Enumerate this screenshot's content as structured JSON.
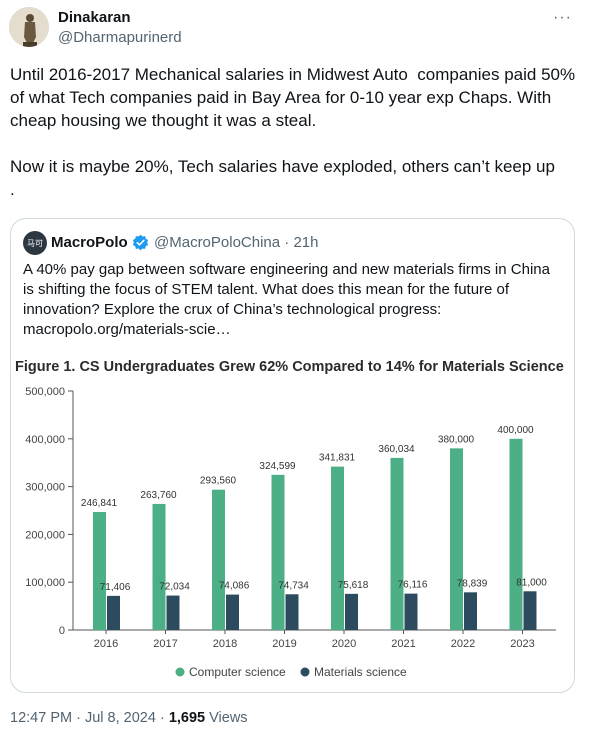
{
  "tweet": {
    "author_name": "Dinakaran",
    "author_handle": "@Dharmapurinerd",
    "more_icon": "more-icon",
    "text": "Until 2016-2017 Mechanical salaries in Midwest Auto  companies paid 50% of what Tech companies paid in Bay Area for 0-10 year exp Chaps. With cheap housing we thought it was a steal.\n\nNow it is maybe 20%, Tech salaries have exploded, others can’t keep up\n.",
    "time": "12:47 PM",
    "date": "Jul 8, 2024",
    "views_count": "1,695",
    "views_label": "Views"
  },
  "quote": {
    "author_name": "MacroPolo",
    "author_handle": "@MacroPoloChina",
    "age": "21h",
    "avatar_text": "马可",
    "text": "A 40% pay gap between software engineering and new materials firms in China is shifting the focus of STEM talent. What does this mean for the future of innovation? Explore the crux of China’s technological progress: macropolo.org/materials-scie…"
  },
  "chart_data": {
    "type": "bar",
    "title": "Figure 1. CS Undergraduates Grew 62% Compared to 14% for Materials Science",
    "categories": [
      "2016",
      "2017",
      "2018",
      "2019",
      "2020",
      "2021",
      "2022",
      "2023"
    ],
    "series": [
      {
        "name": "Computer science",
        "color": "#4daf85",
        "values": [
          246841,
          263760,
          293560,
          324599,
          341831,
          360034,
          380000,
          400000
        ],
        "labels": [
          "246,841",
          "263,760",
          "293,560",
          "324,599",
          "341,831",
          "360,034",
          "380,000",
          "400,000"
        ]
      },
      {
        "name": "Materials science",
        "color": "#2d4b5e",
        "values": [
          71406,
          72034,
          74086,
          74734,
          75618,
          76116,
          78839,
          81000
        ],
        "labels": [
          "71,406",
          "72,034",
          "74,086",
          "74,734",
          "75,618",
          "76,116",
          "78,839",
          "81,000"
        ]
      }
    ],
    "ylim": [
      0,
      500000
    ],
    "yticks": [
      "0",
      "100,000",
      "200,000",
      "300,000",
      "400,000",
      "500,000"
    ],
    "grid": false,
    "legend": "bottom"
  }
}
